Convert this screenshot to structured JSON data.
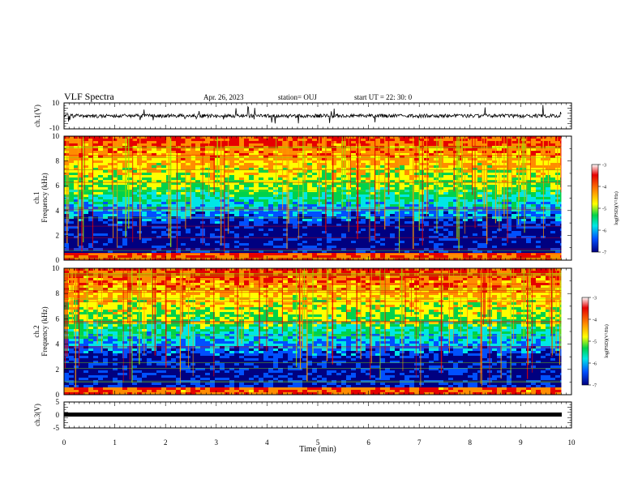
{
  "header": {
    "title": "VLF Spectra",
    "date": "Apr. 26, 2023",
    "station": "station= OUJ",
    "start": "start  UT  =   22: 30: 0"
  },
  "colorbar": {
    "label": "log(PSD)(V²/Hz)",
    "ticks": [
      "-3",
      "-4",
      "-5",
      "-6",
      "-7"
    ],
    "colors": [
      "#e60000",
      "#ff8c00",
      "#ffff00",
      "#00d24b",
      "#00e6e6",
      "#0050ff",
      "#000080"
    ]
  },
  "chart_data": [
    {
      "type": "line",
      "panel": "ch1-waveform",
      "ylabel": "ch.1(V)",
      "ylim": [
        -10,
        10
      ],
      "yticks": [
        "10",
        "-10"
      ],
      "xlim": [
        0,
        10
      ],
      "series": [
        {
          "x": [
            0,
            9.8
          ],
          "y": [
            0,
            0
          ]
        }
      ]
    },
    {
      "type": "heatmap",
      "panel": "ch1-spectrogram",
      "ylabel": "ch.1\nFrequency (kHz)",
      "ylabel_lines": [
        "ch.1",
        "Frequency (kHz)"
      ],
      "ylim": [
        0,
        10
      ],
      "yticks": [
        "0",
        "2",
        "4",
        "6",
        "8",
        "10"
      ],
      "xlim": [
        0,
        10
      ],
      "zlim": [
        -7,
        -3
      ],
      "z_note": "log PSD decreases from ~-3.5 at 10 kHz to ~-6.8 near 1 kHz; bright band at 0.2-0.5 kHz"
    },
    {
      "type": "heatmap",
      "panel": "ch2-spectrogram",
      "ylabel_lines": [
        "ch.2",
        "Frequency (kHz)"
      ],
      "ylim": [
        0,
        10
      ],
      "yticks": [
        "0",
        "2",
        "4",
        "6",
        "8",
        "10"
      ],
      "xlim": [
        0,
        10
      ],
      "zlim": [
        -7,
        -3
      ]
    },
    {
      "type": "line",
      "panel": "ch3-waveform",
      "ylabel": "ch.3(V)",
      "ylim": [
        -5,
        5
      ],
      "yticks": [
        "5",
        "0",
        "-5"
      ],
      "xlim": [
        0,
        10
      ],
      "series": [
        {
          "x": [
            0,
            9.8
          ],
          "y": [
            0,
            0
          ]
        }
      ]
    }
  ],
  "xaxis": {
    "label": "Time (min)",
    "ticks": [
      "0",
      "1",
      "2",
      "3",
      "4",
      "5",
      "6",
      "7",
      "8",
      "9",
      "10"
    ]
  }
}
